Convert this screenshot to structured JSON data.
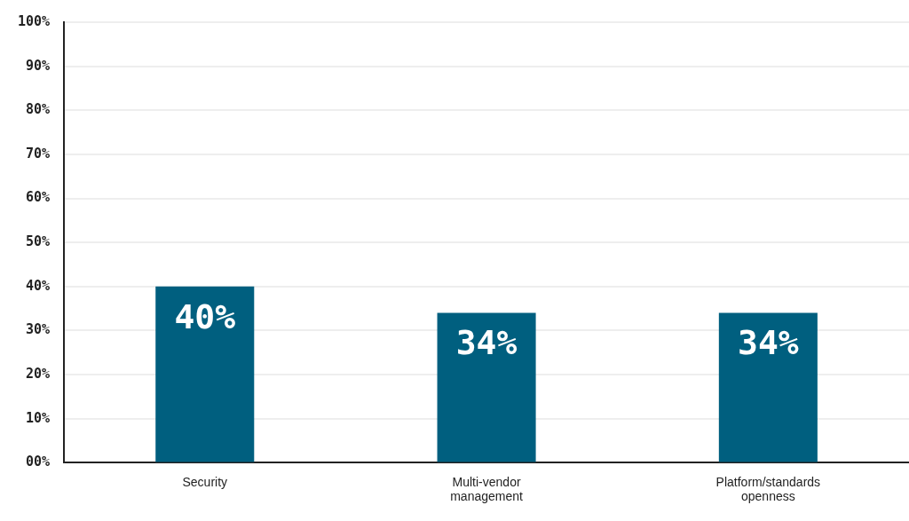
{
  "chart_data": {
    "type": "bar",
    "categories": [
      "Security",
      "Multi-vendor management",
      "Platform/standards openness"
    ],
    "values": [
      40,
      34,
      34
    ],
    "value_labels": [
      "40%",
      "34%",
      "34%"
    ],
    "color": "#005f7f",
    "ylim": [
      0,
      100
    ],
    "yticks": [
      {
        "value": 0,
        "label": "00%"
      },
      {
        "value": 10,
        "label": "10%"
      },
      {
        "value": 20,
        "label": "20%"
      },
      {
        "value": 30,
        "label": "30%"
      },
      {
        "value": 40,
        "label": "40%"
      },
      {
        "value": 50,
        "label": "50%"
      },
      {
        "value": 60,
        "label": "60%"
      },
      {
        "value": 70,
        "label": "70%"
      },
      {
        "value": 80,
        "label": "80%"
      },
      {
        "value": 90,
        "label": "90%"
      },
      {
        "value": 100,
        "label": "100%"
      }
    ],
    "grid": true,
    "data_labels": true
  }
}
